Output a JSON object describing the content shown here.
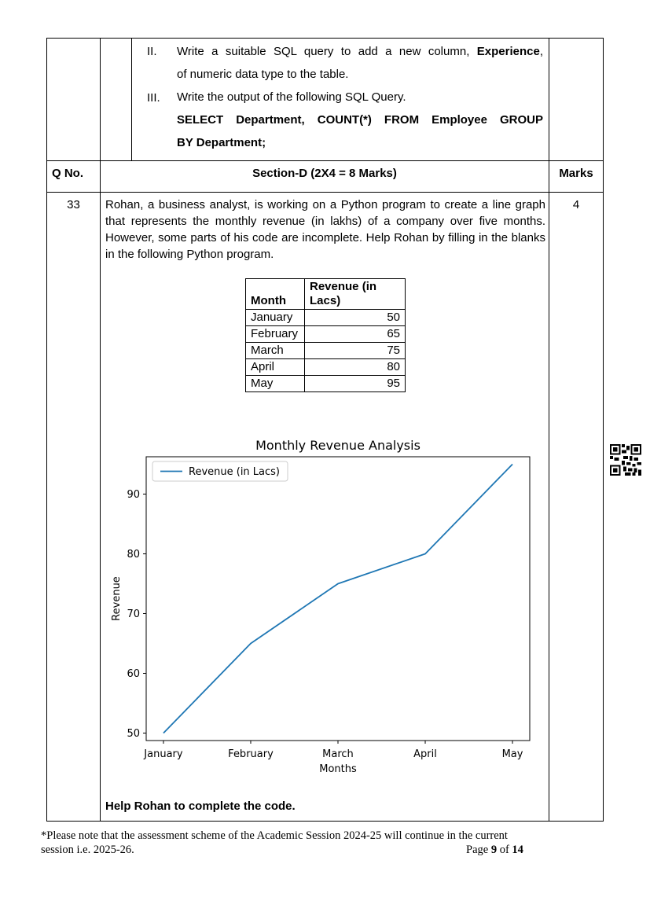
{
  "question_parts": {
    "part2": {
      "numeral": "II.",
      "text_before": "Write a suitable SQL query to add a new column, ",
      "bold": "Experience",
      "text_after": ",",
      "line2": "of numeric data type to the table."
    },
    "part3": {
      "numeral": "III.",
      "text": "Write the output of the following SQL Query.",
      "query_line1": "SELECT Department, COUNT(*) FROM Employee GROUP",
      "query_line2": "BY Department;"
    }
  },
  "section_header": {
    "qno": "Q No.",
    "title": "Section-D (2X4 = 8 Marks)",
    "marks": "Marks"
  },
  "question33": {
    "number": "33",
    "marks": "4",
    "text": "Rohan, a business analyst, is working on a Python program to create a line graph that represents the monthly revenue (in lakhs) of a company over five months. However, some parts of his code are incomplete. Help Rohan by filling in the blanks in the following Python program.",
    "table": {
      "headers": [
        "Month",
        "Revenue (in Lacs)"
      ],
      "rows": [
        {
          "month": "January",
          "revenue": "50"
        },
        {
          "month": "February",
          "revenue": "65"
        },
        {
          "month": "March",
          "revenue": "75"
        },
        {
          "month": "April",
          "revenue": "80"
        },
        {
          "month": "May",
          "revenue": "95"
        }
      ]
    },
    "closing": "Help Rohan to complete the code."
  },
  "chart_data": {
    "type": "line",
    "title": "Monthly Revenue Analysis",
    "xlabel": "Months",
    "ylabel": "Revenue",
    "categories": [
      "January",
      "February",
      "March",
      "April",
      "May"
    ],
    "series": [
      {
        "name": "Revenue (in Lacs)",
        "values": [
          50,
          65,
          75,
          80,
          95
        ],
        "color": "#1f77b4"
      }
    ],
    "yticks": [
      50,
      60,
      70,
      80,
      90
    ],
    "ylim": [
      48.75,
      96.25
    ],
    "grid": false,
    "legend_position": "upper-left"
  },
  "footer": {
    "note_line1": "*Please note that the assessment scheme of the Academic Session 2024-25 will continue in the current",
    "note_line2": "session i.e. 2025-26.",
    "page_prefix": "Page ",
    "page_num": "9",
    "page_of": " of ",
    "page_total": "14"
  }
}
